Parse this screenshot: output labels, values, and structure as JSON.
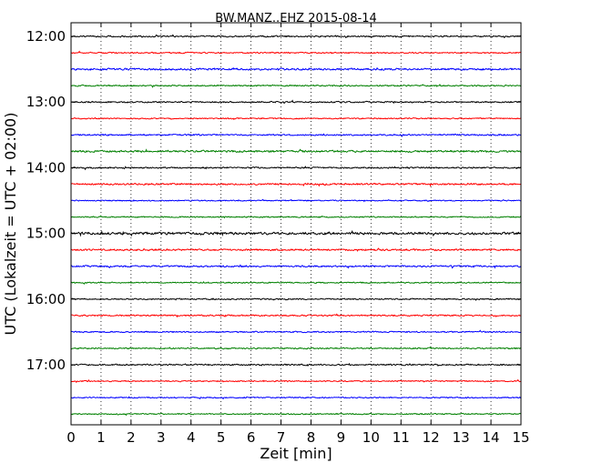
{
  "chart_data": {
    "type": "line",
    "title": "BW.MANZ..EHZ 2015-08-14",
    "xlabel": "Zeit  [min]",
    "ylabel": "UTC (Lokalzeit = UTC + 02:00)",
    "xlim": [
      0,
      15
    ],
    "x_ticks": [
      "0",
      "1",
      "2",
      "3",
      "4",
      "5",
      "6",
      "7",
      "8",
      "9",
      "10",
      "11",
      "12",
      "13",
      "14",
      "15"
    ],
    "y_ticks": [
      {
        "label": "12:00",
        "trace_index": 0
      },
      {
        "label": "13:00",
        "trace_index": 4
      },
      {
        "label": "14:00",
        "trace_index": 8
      },
      {
        "label": "15:00",
        "trace_index": 12
      },
      {
        "label": "16:00",
        "trace_index": 16
      },
      {
        "label": "17:00",
        "trace_index": 20
      }
    ],
    "trace_colors": [
      "#000000",
      "#ff0000",
      "#0000ff",
      "#008000"
    ],
    "traces": [
      {
        "start": "12:00",
        "amplitude": 0.6
      },
      {
        "start": "12:15",
        "amplitude": 0.55
      },
      {
        "start": "12:30",
        "amplitude": 0.8
      },
      {
        "start": "12:45",
        "amplitude": 0.55
      },
      {
        "start": "13:00",
        "amplitude": 0.6
      },
      {
        "start": "13:15",
        "amplitude": 0.5
      },
      {
        "start": "13:30",
        "amplitude": 0.6
      },
      {
        "start": "13:45",
        "amplitude": 0.8
      },
      {
        "start": "14:00",
        "amplitude": 0.6
      },
      {
        "start": "14:15",
        "amplitude": 0.7
      },
      {
        "start": "14:30",
        "amplitude": 0.45
      },
      {
        "start": "14:45",
        "amplitude": 0.5
      },
      {
        "start": "15:00",
        "amplitude": 1.0
      },
      {
        "start": "15:15",
        "amplitude": 0.7
      },
      {
        "start": "15:30",
        "amplitude": 0.7
      },
      {
        "start": "15:45",
        "amplitude": 0.5
      },
      {
        "start": "16:00",
        "amplitude": 0.55
      },
      {
        "start": "16:15",
        "amplitude": 0.6
      },
      {
        "start": "16:30",
        "amplitude": 0.55
      },
      {
        "start": "16:45",
        "amplitude": 0.55
      },
      {
        "start": "17:00",
        "amplitude": 0.6
      },
      {
        "start": "17:15",
        "amplitude": 0.5
      },
      {
        "start": "17:30",
        "amplitude": 0.5
      },
      {
        "start": "17:45",
        "amplitude": 0.5
      }
    ],
    "grid": {
      "x": true,
      "y": false
    }
  }
}
